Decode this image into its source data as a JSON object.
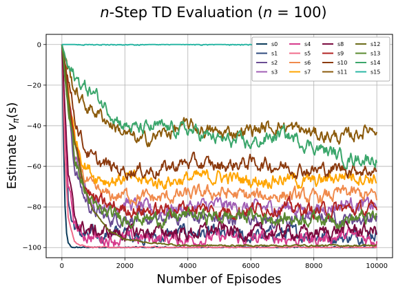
{
  "chart_data": {
    "type": "line",
    "title_prefix": "n",
    "title_main": "-Step TD Evaluation (",
    "title_n": "n",
    "title_suffix": " = 100)",
    "xlabel": "Number of Episodes",
    "ylabel_prefix": "Estimate ",
    "ylabel_v": "v",
    "ylabel_pi": "π",
    "ylabel_suffix": "(s)",
    "xlim": [
      -500,
      10500
    ],
    "ylim": [
      -105,
      5
    ],
    "xticks": [
      "0",
      "2000",
      "4000",
      "6000",
      "8000",
      "10000"
    ],
    "xtick_values": [
      0,
      2000,
      4000,
      6000,
      8000,
      10000
    ],
    "yticks": [
      "0",
      "−20",
      "−40",
      "−60",
      "−80",
      "−100"
    ],
    "ytick_values": [
      0,
      -20,
      -40,
      -60,
      -80,
      -100
    ],
    "grid": true,
    "legend_position": "top-right",
    "legend_columns": 4,
    "series": [
      {
        "name": "s0",
        "color": "#0b3b5a",
        "x": [
          0,
          50,
          100,
          150,
          200,
          300,
          500,
          1000,
          2000,
          4000,
          6000,
          8000,
          10000
        ],
        "y": [
          0,
          -45,
          -80,
          -93,
          -98,
          -100,
          -100,
          -100,
          -100,
          -100,
          -100,
          -100,
          -100
        ]
      },
      {
        "name": "s1",
        "color": "#2d4a7e",
        "x": [
          0,
          100,
          200,
          300,
          500,
          800,
          1000,
          2000,
          3000,
          4000,
          5000,
          6000,
          7000,
          8000,
          9000,
          10000
        ],
        "y": [
          0,
          -40,
          -75,
          -86,
          -92,
          -95,
          -94,
          -93,
          -95,
          -92,
          -94,
          -95,
          -93,
          -94,
          -95,
          -93
        ]
      },
      {
        "name": "s2",
        "color": "#6a4c93",
        "x": [
          0,
          200,
          400,
          700,
          1000,
          1500,
          2000,
          3000,
          4000,
          5000,
          6000,
          7000,
          8000,
          9000,
          10000
        ],
        "y": [
          0,
          -30,
          -60,
          -75,
          -82,
          -86,
          -85,
          -87,
          -84,
          -86,
          -85,
          -88,
          -84,
          -86,
          -85
        ]
      },
      {
        "name": "s3",
        "color": "#a05eb5",
        "x": [
          0,
          200,
          400,
          700,
          1000,
          1500,
          2000,
          3000,
          4000,
          5000,
          6000,
          7000,
          8000,
          9000,
          10000
        ],
        "y": [
          0,
          -28,
          -55,
          -70,
          -76,
          -80,
          -78,
          -82,
          -80,
          -79,
          -81,
          -80,
          -82,
          -78,
          -80
        ]
      },
      {
        "name": "s4",
        "color": "#d63a8b",
        "x": [
          0,
          100,
          200,
          400,
          600,
          1000,
          2000,
          3000,
          4000,
          5000,
          6000,
          7000,
          8000,
          9000,
          10000
        ],
        "y": [
          0,
          -40,
          -70,
          -88,
          -93,
          -95,
          -96,
          -95,
          -96,
          -95,
          -96,
          -95,
          -96,
          -94,
          -96
        ]
      },
      {
        "name": "s5",
        "color": "#f06b8a",
        "x": [
          0,
          100,
          200,
          400,
          600,
          1000,
          2000,
          3000,
          4000,
          6000,
          8000,
          10000
        ],
        "y": [
          0,
          -55,
          -85,
          -97,
          -99,
          -100,
          -100,
          -100,
          -100,
          -100,
          -100,
          -100
        ]
      },
      {
        "name": "s6",
        "color": "#f08a4b",
        "x": [
          0,
          200,
          400,
          700,
          1000,
          1500,
          2000,
          3000,
          4000,
          5000,
          6000,
          7000,
          8000,
          9000,
          10000
        ],
        "y": [
          0,
          -25,
          -50,
          -65,
          -72,
          -75,
          -74,
          -76,
          -74,
          -73,
          -75,
          -74,
          -76,
          -73,
          -75
        ]
      },
      {
        "name": "s7",
        "color": "#ffa500",
        "x": [
          0,
          200,
          400,
          700,
          1000,
          1500,
          2000,
          3000,
          4000,
          5000,
          6000,
          7000,
          8000,
          9000,
          10000
        ],
        "y": [
          0,
          -22,
          -45,
          -58,
          -64,
          -67,
          -66,
          -68,
          -66,
          -65,
          -67,
          -66,
          -68,
          -64,
          -66
        ]
      },
      {
        "name": "s8",
        "color": "#7a0a3e",
        "x": [
          0,
          100,
          200,
          400,
          600,
          1000,
          2000,
          3000,
          4000,
          5000,
          6000,
          7000,
          8000,
          9000,
          10000
        ],
        "y": [
          0,
          -35,
          -65,
          -85,
          -90,
          -92,
          -93,
          -92,
          -93,
          -91,
          -93,
          -92,
          -93,
          -91,
          -92
        ]
      },
      {
        "name": "s9",
        "color": "#b22222",
        "x": [
          0,
          200,
          400,
          700,
          1000,
          1500,
          2000,
          3000,
          4000,
          5000,
          6000,
          7000,
          8000,
          9000,
          10000
        ],
        "y": [
          0,
          -25,
          -50,
          -68,
          -76,
          -80,
          -81,
          -82,
          -80,
          -82,
          -81,
          -80,
          -82,
          -81,
          -82
        ]
      },
      {
        "name": "s10",
        "color": "#8b3a0e",
        "x": [
          0,
          200,
          400,
          700,
          1000,
          1500,
          2000,
          3000,
          4000,
          5000,
          6000,
          7000,
          8000,
          9000,
          10000
        ],
        "y": [
          0,
          -15,
          -35,
          -50,
          -57,
          -60,
          -62,
          -62,
          -58,
          -60,
          -58,
          -60,
          -62,
          -61,
          -62
        ]
      },
      {
        "name": "s11",
        "color": "#8b5a0b",
        "x": [
          0,
          200,
          400,
          700,
          1000,
          1500,
          2000,
          2500,
          3000,
          4000,
          5000,
          6000,
          7000,
          8000,
          9000,
          10000
        ],
        "y": [
          0,
          -12,
          -22,
          -30,
          -32,
          -38,
          -44,
          -48,
          -45,
          -40,
          -44,
          -42,
          -40,
          -44,
          -46,
          -40
        ]
      },
      {
        "name": "s12",
        "color": "#6b6b18",
        "x": [
          0,
          300,
          700,
          1000,
          1500,
          2000,
          3000,
          4000,
          6000,
          8000,
          10000
        ],
        "y": [
          0,
          -40,
          -70,
          -82,
          -92,
          -96,
          -98,
          -99,
          -99,
          -99,
          -99
        ]
      },
      {
        "name": "s13",
        "color": "#5a8a2f",
        "x": [
          0,
          200,
          400,
          700,
          1000,
          1500,
          2000,
          3000,
          4000,
          5000,
          6000,
          7000,
          8000,
          9000,
          10000
        ],
        "y": [
          0,
          -30,
          -55,
          -72,
          -80,
          -84,
          -85,
          -86,
          -84,
          -85,
          -84,
          -86,
          -85,
          -86,
          -85
        ]
      },
      {
        "name": "s14",
        "color": "#3aa66b",
        "x": [
          0,
          200,
          500,
          1000,
          1500,
          2000,
          2500,
          3000,
          4000,
          5000,
          6000,
          7000,
          8000,
          9000,
          10000
        ],
        "y": [
          0,
          -12,
          -18,
          -24,
          -32,
          -40,
          -42,
          -41,
          -42,
          -47,
          -49,
          -44,
          -50,
          -56,
          -56
        ]
      },
      {
        "name": "s15",
        "color": "#2bb7a5",
        "x": [
          0,
          10000
        ],
        "y": [
          0,
          0
        ]
      }
    ]
  }
}
